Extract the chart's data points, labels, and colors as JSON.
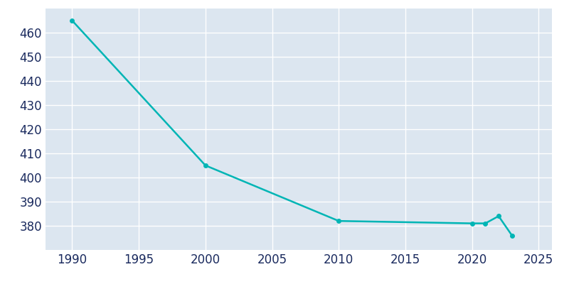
{
  "years": [
    1990,
    2000,
    2010,
    2020,
    2021,
    2022,
    2023
  ],
  "population": [
    465,
    405,
    382,
    381,
    381,
    384,
    376
  ],
  "line_color": "#00B5B5",
  "marker": "o",
  "marker_size": 4,
  "background_color": "#ffffff",
  "axes_bg_color": "#dce6f0",
  "grid_color": "#ffffff",
  "tick_label_color": "#1a2a5e",
  "xlim": [
    1988,
    2026
  ],
  "ylim": [
    370,
    470
  ],
  "xticks": [
    1990,
    1995,
    2000,
    2005,
    2010,
    2015,
    2020,
    2025
  ],
  "yticks": [
    380,
    390,
    400,
    410,
    420,
    430,
    440,
    450,
    460
  ],
  "linewidth": 1.8,
  "tick_fontsize": 12
}
